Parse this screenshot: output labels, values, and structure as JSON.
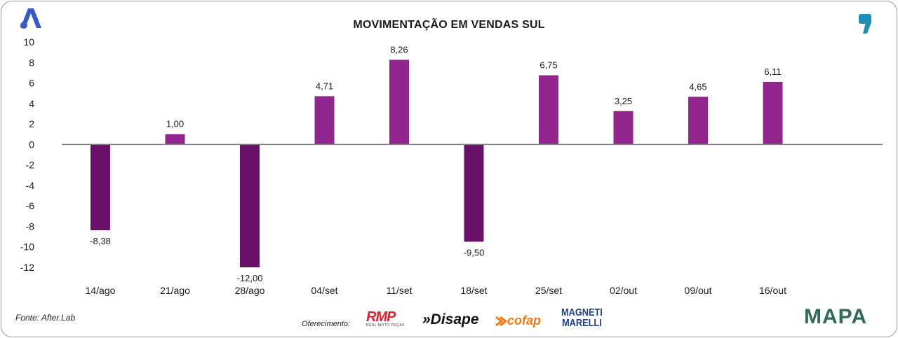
{
  "chart_data": {
    "type": "bar",
    "title": "MOVIMENTAÇÃO EM VENDAS SUL",
    "categories": [
      "14/ago",
      "21/ago",
      "28/ago",
      "04/set",
      "11/set",
      "18/set",
      "25/set",
      "02/out",
      "09/out",
      "16/out"
    ],
    "values": [
      -8.38,
      1.0,
      -12.0,
      4.71,
      8.26,
      -9.5,
      6.75,
      3.25,
      4.65,
      6.11
    ],
    "value_labels": [
      "-8,38",
      "1,00",
      "-12,00",
      "4,71",
      "8,26",
      "-9,50",
      "6,75",
      "3,25",
      "4,65",
      "6,11"
    ],
    "ylim": [
      -12,
      10
    ],
    "yticks": [
      10,
      8,
      6,
      4,
      2,
      0,
      -2,
      -4,
      -6,
      -8,
      -10,
      -12
    ],
    "xlabel": "",
    "ylabel": "",
    "grid": false,
    "colors": {
      "positive": "#91268f",
      "negative": "#6b1069",
      "axis": "#7f7f7f"
    }
  },
  "footer": {
    "source": "Fonte: After.Lab",
    "offer_label": "Oferecimento:",
    "sponsors": [
      "RMP",
      "REAL MOTO PEÇAS",
      "»Disape",
      "cofap",
      "MAGNETI",
      "MARELLI",
      "MAPA"
    ]
  },
  "brand": {
    "accent_blue": "#3a59c9",
    "accent_teal": "#1e8fb4"
  }
}
